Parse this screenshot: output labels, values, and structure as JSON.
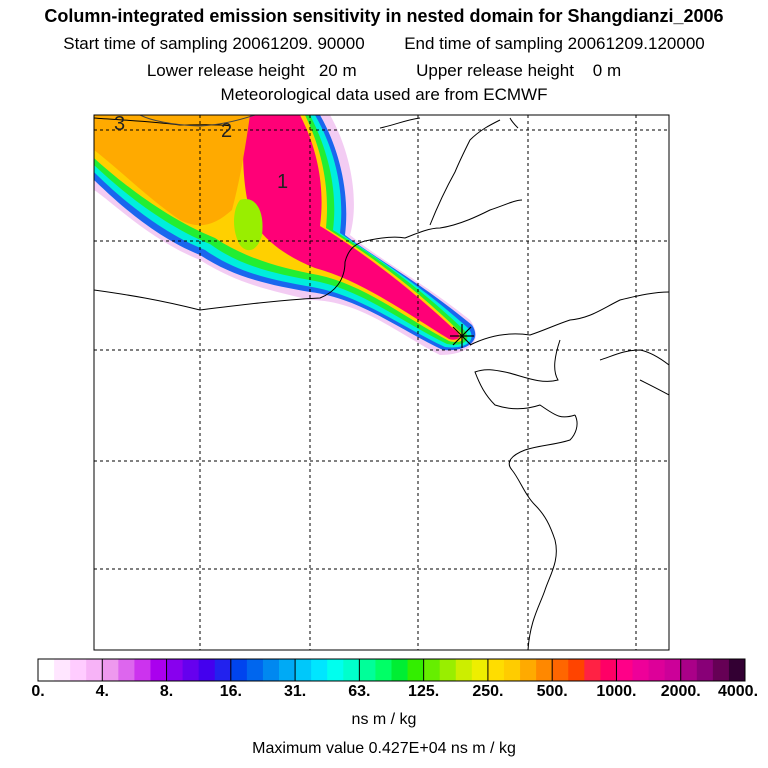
{
  "header": {
    "title": "Column-integrated emission sensitivity in nested domain for Shangdianzi_2006",
    "sampling_start": "Start time of sampling 20061209. 90000",
    "sampling_end": "End time of sampling 20061209.120000",
    "lower_release": "Lower release height   20 m",
    "upper_release": "Upper release height    0 m",
    "met_data": "Meteorological data used are from ECMWF"
  },
  "map": {
    "contour_labels": [
      "3",
      "2",
      "1"
    ],
    "release_marker": "receptor-star"
  },
  "colorbar": {
    "colors": [
      "#ffffff",
      "#ffe6ff",
      "#ffccff",
      "#f7b3f7",
      "#ee99ee",
      "#dd66ee",
      "#cc33ee",
      "#aa00ee",
      "#8800ee",
      "#6600ee",
      "#4400ee",
      "#2222ee",
      "#0044ee",
      "#0066ee",
      "#0088f0",
      "#00aaf5",
      "#00c8fa",
      "#00e6ff",
      "#00ffee",
      "#00ffcc",
      "#00ff99",
      "#00ff66",
      "#00ee33",
      "#33ee00",
      "#66ee00",
      "#99ee00",
      "#ccee00",
      "#eeee00",
      "#ffdd00",
      "#ffcc00",
      "#ffaa00",
      "#ff8800",
      "#ff6600",
      "#ff4400",
      "#ff2244",
      "#ff0066",
      "#ff0088",
      "#ee0099",
      "#dd0099",
      "#cc0099",
      "#aa0088",
      "#880077",
      "#660055",
      "#330033"
    ],
    "tick_labels": [
      "0.",
      "4.",
      "8.",
      "16.",
      "31.",
      "63.",
      "125.",
      "250.",
      "500.",
      "1000.",
      "2000.",
      "4000."
    ],
    "unit": "ns m / kg"
  },
  "footer": {
    "max_value": "Maximum value  0.427E+04 ns m / kg"
  }
}
